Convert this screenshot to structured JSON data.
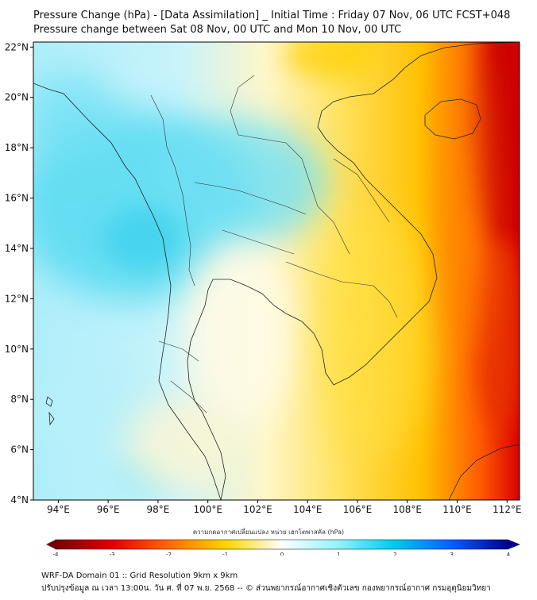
{
  "title": {
    "line1": "Pressure Change (hPa) - [Data Assimilation] _ Initial Time : Friday 07 Nov, 06 UTC FCST+048",
    "line2": "Pressure change between Sat 08 Nov, 00 UTC and Mon 10 Nov, 00 UTC"
  },
  "map": {
    "lon_range": [
      93,
      112.5
    ],
    "lat_range": [
      4,
      22.2
    ],
    "lon_ticks": [
      "94°E",
      "96°E",
      "98°E",
      "100°E",
      "102°E",
      "104°E",
      "106°E",
      "108°E",
      "110°E",
      "112°E"
    ],
    "lat_ticks": [
      "22°N",
      "20°N",
      "18°N",
      "16°N",
      "14°N",
      "12°N",
      "10°N",
      "8°N",
      "6°N",
      "4°N"
    ]
  },
  "colorbar": {
    "title": "ความกดอากาศเปลี่ยนแปลง หน่วย เฮกโตพาสคัล (hPa)",
    "labels": [
      "-4",
      "-3",
      "-2",
      "-1",
      "0",
      "1",
      "2",
      "3",
      "4"
    ],
    "colors": {
      "neg4": "#7a0000",
      "neg3": "#e00000",
      "neg2": "#ff6a00",
      "neg1": "#ffd400",
      "zero": "#ffffff",
      "pos1": "#8ff4ff",
      "pos2": "#00c8f0",
      "pos3": "#0060ff",
      "pos4": "#000090"
    }
  },
  "footer": {
    "line1": "WRF-DA Domain 01 :: Grid Resolution 9km x 9km",
    "line2": "ปรับปรุงข้อมูล ณ เวลา 13:00น. วัน ศ. ที่ 07 พ.ย. 2568 -- © ส่วนพยากรณ์อากาศเชิงตัวเลข กองพยากรณ์อากาศ กรมอุตุนิยมวิทยา"
  }
}
